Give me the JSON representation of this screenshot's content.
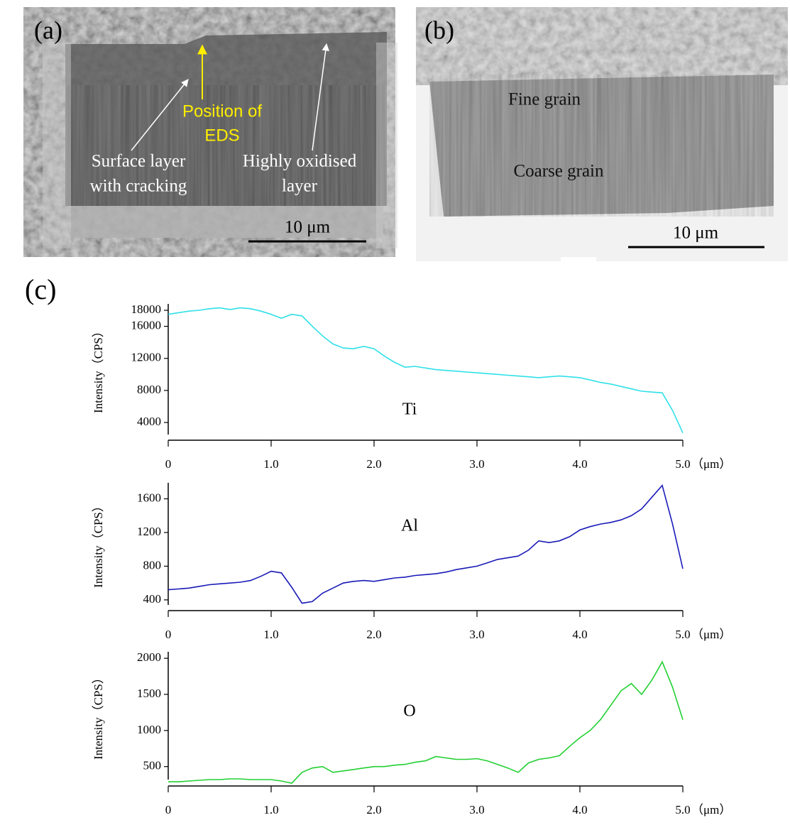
{
  "figure": {
    "panel_a": {
      "label": "(a)",
      "eds": [
        "Position of",
        "EDS"
      ],
      "surface": [
        "Surface layer",
        "with cracking"
      ],
      "oxidised": [
        "Highly oxidised",
        "layer"
      ],
      "scale": "10 μm"
    },
    "panel_b": {
      "label": "(b)",
      "fine": "Fine grain",
      "coarse": "Coarse grain",
      "scale": "10 μm"
    },
    "panel_c": {
      "label": "(c)"
    }
  },
  "chart_data": [
    {
      "type": "line",
      "y_label": "Intensity（CPS）",
      "x_unit": "（μm）",
      "x": [
        0,
        0.1,
        0.2,
        0.3,
        0.4,
        0.5,
        0.6,
        0.7,
        0.8,
        0.9,
        1,
        1.1,
        1.2,
        1.3,
        1.4,
        1.5,
        1.6,
        1.7,
        1.8,
        1.9,
        2,
        2.1,
        2.2,
        2.3,
        2.4,
        2.5,
        2.6,
        2.7,
        2.8,
        2.9,
        3,
        3.1,
        3.2,
        3.3,
        3.4,
        3.5,
        3.6,
        3.7,
        3.8,
        3.9,
        4,
        4.1,
        4.2,
        4.3,
        4.4,
        4.5,
        4.6,
        4.7,
        4.8,
        4.9,
        5
      ],
      "series": [
        {
          "name": "Ti",
          "color": "#2fe0e8",
          "values": [
            17500,
            17700,
            17900,
            18000,
            18200,
            18300,
            18100,
            18300,
            18200,
            17900,
            17500,
            17000,
            17500,
            17300,
            16000,
            14800,
            13800,
            13300,
            13200,
            13500,
            13200,
            12300,
            11500,
            10900,
            11000,
            10800,
            10600,
            10500,
            10400,
            10300,
            10200,
            10100,
            10000,
            9900,
            9800,
            9700,
            9600,
            9700,
            9800,
            9700,
            9600,
            9300,
            9000,
            8800,
            8500,
            8200,
            7900,
            7800,
            7700,
            5500,
            2700
          ]
        }
      ],
      "xlim": [
        0,
        5
      ],
      "xticks": [
        0,
        {
          "value": 1,
          "label": "1.0"
        },
        {
          "value": 2,
          "label": "2.0"
        },
        {
          "value": 3,
          "label": "3.0"
        },
        {
          "value": 4,
          "label": "4.0"
        },
        {
          "value": 5,
          "label": "5.0"
        }
      ],
      "ylim": [
        2500,
        18800
      ],
      "yticks": [
        4000,
        8000,
        12000,
        16000,
        18000
      ]
    },
    {
      "type": "line",
      "y_label": "Intensity（CPS）",
      "x_unit": "（μm）",
      "x": [
        0,
        0.1,
        0.2,
        0.3,
        0.4,
        0.5,
        0.6,
        0.7,
        0.8,
        0.9,
        1,
        1.1,
        1.2,
        1.3,
        1.4,
        1.5,
        1.6,
        1.7,
        1.8,
        1.9,
        2,
        2.1,
        2.2,
        2.3,
        2.4,
        2.5,
        2.6,
        2.7,
        2.8,
        2.9,
        3,
        3.1,
        3.2,
        3.3,
        3.4,
        3.5,
        3.6,
        3.7,
        3.8,
        3.9,
        4,
        4.1,
        4.2,
        4.3,
        4.4,
        4.5,
        4.6,
        4.7,
        4.8,
        4.9,
        5
      ],
      "series": [
        {
          "name": "Al",
          "color": "#1a1ab8",
          "values": [
            520,
            530,
            540,
            560,
            580,
            590,
            600,
            610,
            630,
            680,
            740,
            720,
            550,
            360,
            380,
            480,
            540,
            600,
            620,
            630,
            620,
            640,
            660,
            670,
            690,
            700,
            710,
            730,
            760,
            780,
            800,
            840,
            880,
            900,
            920,
            990,
            1100,
            1080,
            1100,
            1150,
            1230,
            1270,
            1300,
            1320,
            1350,
            1400,
            1480,
            1620,
            1760,
            1300,
            770
          ]
        }
      ],
      "xlim": [
        0,
        5
      ],
      "xticks": [
        0,
        {
          "value": 1,
          "label": "1.0"
        },
        {
          "value": 2,
          "label": "2.0"
        },
        {
          "value": 3,
          "label": "3.0"
        },
        {
          "value": 4,
          "label": "4.0"
        },
        {
          "value": 5,
          "label": "5.0"
        }
      ],
      "ylim": [
        340,
        1790
      ],
      "yticks": [
        400,
        800,
        1200,
        1600
      ]
    },
    {
      "type": "line",
      "y_label": "Intensity（CPS）",
      "x_unit": "（μm）",
      "x": [
        0,
        0.1,
        0.2,
        0.3,
        0.4,
        0.5,
        0.6,
        0.7,
        0.8,
        0.9,
        1,
        1.1,
        1.2,
        1.3,
        1.4,
        1.5,
        1.6,
        1.7,
        1.8,
        1.9,
        2,
        2.1,
        2.2,
        2.3,
        2.4,
        2.5,
        2.6,
        2.7,
        2.8,
        2.9,
        3,
        3.1,
        3.2,
        3.3,
        3.4,
        3.5,
        3.6,
        3.7,
        3.8,
        3.9,
        4,
        4.1,
        4.2,
        4.3,
        4.4,
        4.5,
        4.6,
        4.7,
        4.8,
        4.9,
        5
      ],
      "series": [
        {
          "name": "O",
          "color": "#22d032",
          "values": [
            290,
            290,
            300,
            310,
            320,
            320,
            330,
            330,
            320,
            320,
            320,
            300,
            270,
            420,
            480,
            500,
            420,
            440,
            460,
            480,
            500,
            500,
            520,
            530,
            560,
            580,
            640,
            620,
            600,
            600,
            610,
            580,
            530,
            480,
            420,
            550,
            600,
            620,
            650,
            780,
            900,
            1000,
            1150,
            1350,
            1550,
            1650,
            1500,
            1700,
            1950,
            1600,
            1150
          ]
        }
      ],
      "xlim": [
        0,
        5
      ],
      "xticks": [
        0,
        {
          "value": 1,
          "label": "1.0"
        },
        {
          "value": 2,
          "label": "2.0"
        },
        {
          "value": 3,
          "label": "3.0"
        },
        {
          "value": 4,
          "label": "4.0"
        },
        {
          "value": 5,
          "label": "5.0"
        }
      ],
      "ylim": [
        320,
        2090
      ],
      "yticks": [
        500,
        1000,
        1500,
        2000
      ]
    }
  ]
}
